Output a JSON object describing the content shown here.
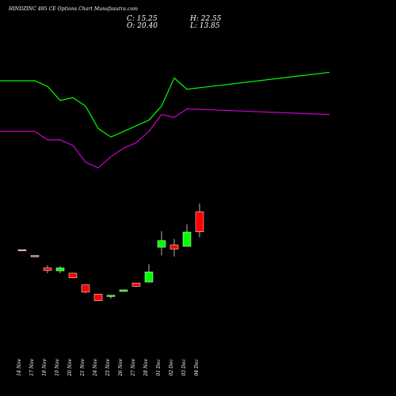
{
  "header": {
    "title": "HINDZINC 495 CE Options Chart Munafasutra.com",
    "close": "C: 15.25",
    "open": "O: 20.40",
    "high": "H: 22.55",
    "low": "L: 13.85"
  },
  "chart_data": {
    "type": "candlestick",
    "title": "HINDZINC 495 CE Options Chart Munafasutra.com",
    "categories": [
      "14 Nov",
      "17 Nov",
      "18 Nov",
      "19 Nov",
      "20 Nov",
      "21 Nov",
      "24 Nov",
      "25 Nov",
      "26 Nov",
      "27 Nov",
      "28 Nov",
      "01 Dec",
      "02 Dec",
      "03 Dec",
      "04 Dec"
    ],
    "candles": [
      {
        "date": "14 Nov",
        "open": 10.5,
        "high": 10.5,
        "low": 10.5,
        "close": 10.5,
        "color": "#ff6666"
      },
      {
        "date": "17 Nov",
        "open": 9.0,
        "high": 9.0,
        "low": 9.0,
        "close": 9.0,
        "color": "#ff6666"
      },
      {
        "date": "18 Nov",
        "open": 6.0,
        "high": 6.6,
        "low": 4.6,
        "close": 5.3,
        "color": "#ff0000"
      },
      {
        "date": "19 Nov",
        "open": 5.2,
        "high": 6.4,
        "low": 4.6,
        "close": 6.0,
        "color": "#00ff00"
      },
      {
        "date": "20 Nov",
        "open": 4.6,
        "high": 4.6,
        "low": 3.3,
        "close": 3.4,
        "color": "#ff0000"
      },
      {
        "date": "21 Nov",
        "open": 1.6,
        "high": 1.6,
        "low": -0.5,
        "close": -0.3,
        "color": "#ff0000"
      },
      {
        "date": "24 Nov",
        "open": -0.8,
        "high": -0.8,
        "low": -2.6,
        "close": -2.5,
        "color": "#ff0000"
      },
      {
        "date": "25 Nov",
        "open": -1.4,
        "high": -1.0,
        "low": -2.0,
        "close": -1.1,
        "color": "#00ff00"
      },
      {
        "date": "26 Nov",
        "open": -0.1,
        "high": 0.4,
        "low": -0.2,
        "close": 0.3,
        "color": "#00ff00"
      },
      {
        "date": "27 Nov",
        "open": 2.1,
        "high": 2.1,
        "low": 1.0,
        "close": 1.2,
        "color": "#ff0000"
      },
      {
        "date": "28 Nov",
        "open": 2.3,
        "high": 6.9,
        "low": 2.3,
        "close": 4.9,
        "color": "#00ff00"
      },
      {
        "date": "01 Dec",
        "open": 11.3,
        "high": 15.4,
        "low": 9.2,
        "close": 13.0,
        "color": "#00ff00"
      },
      {
        "date": "02 Dec",
        "open": 11.9,
        "high": 13.4,
        "low": 8.9,
        "close": 10.8,
        "color": "#ff0000"
      },
      {
        "date": "03 Dec",
        "open": 11.5,
        "high": 17.2,
        "low": 11.5,
        "close": 15.2,
        "color": "#00ff00"
      },
      {
        "date": "04 Dec",
        "open": 20.4,
        "high": 22.55,
        "low": 13.85,
        "close": 15.25,
        "color": "#ff0000"
      }
    ],
    "series": [
      {
        "color": "#00ff00",
        "values": [
          90,
          90,
          88,
          83,
          84,
          81,
          73,
          70,
          72,
          74,
          76,
          81,
          91,
          87,
          93
        ]
      },
      {
        "color": "#cc00cc",
        "values": [
          72,
          72,
          69,
          69,
          67,
          61,
          59,
          63,
          66,
          68,
          72,
          78,
          77,
          80,
          78
        ]
      }
    ],
    "grid": false,
    "legend": "none"
  }
}
